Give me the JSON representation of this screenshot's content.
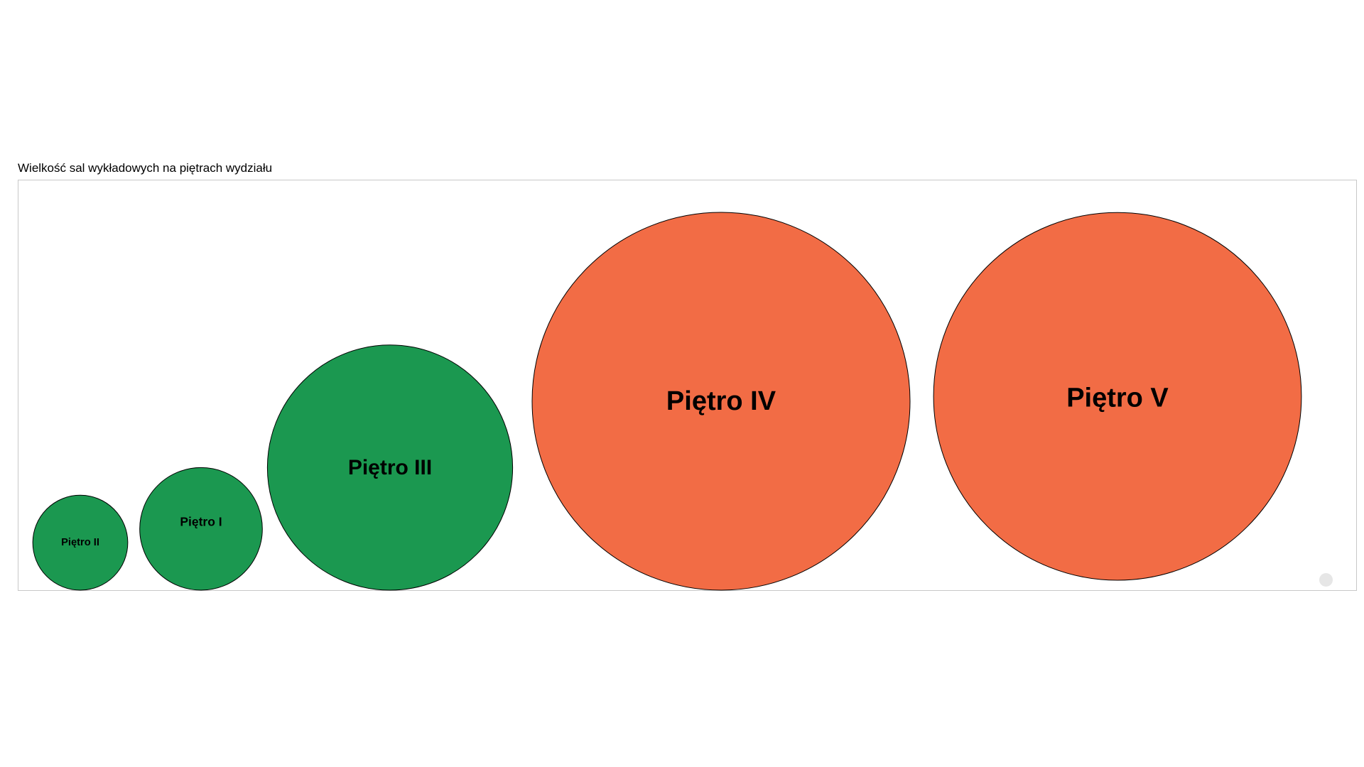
{
  "chart_data": {
    "type": "bubble",
    "title": "Wielkość sal wykładowych na piętrach wydziału",
    "categories": [
      "Piętro II",
      "Piętro I",
      "Piętro III",
      "Piętro IV",
      "Piętro V"
    ],
    "values": [
      12,
      20,
      80,
      190,
      180
    ],
    "colors": [
      "#1b9850",
      "#1b9850",
      "#1b9850",
      "#f26c45",
      "#f26c45"
    ],
    "legend": "none",
    "grid": false
  },
  "colors": {
    "green": "#1b9850",
    "orange": "#f26c45",
    "frame_border": "#c8c8c8"
  }
}
